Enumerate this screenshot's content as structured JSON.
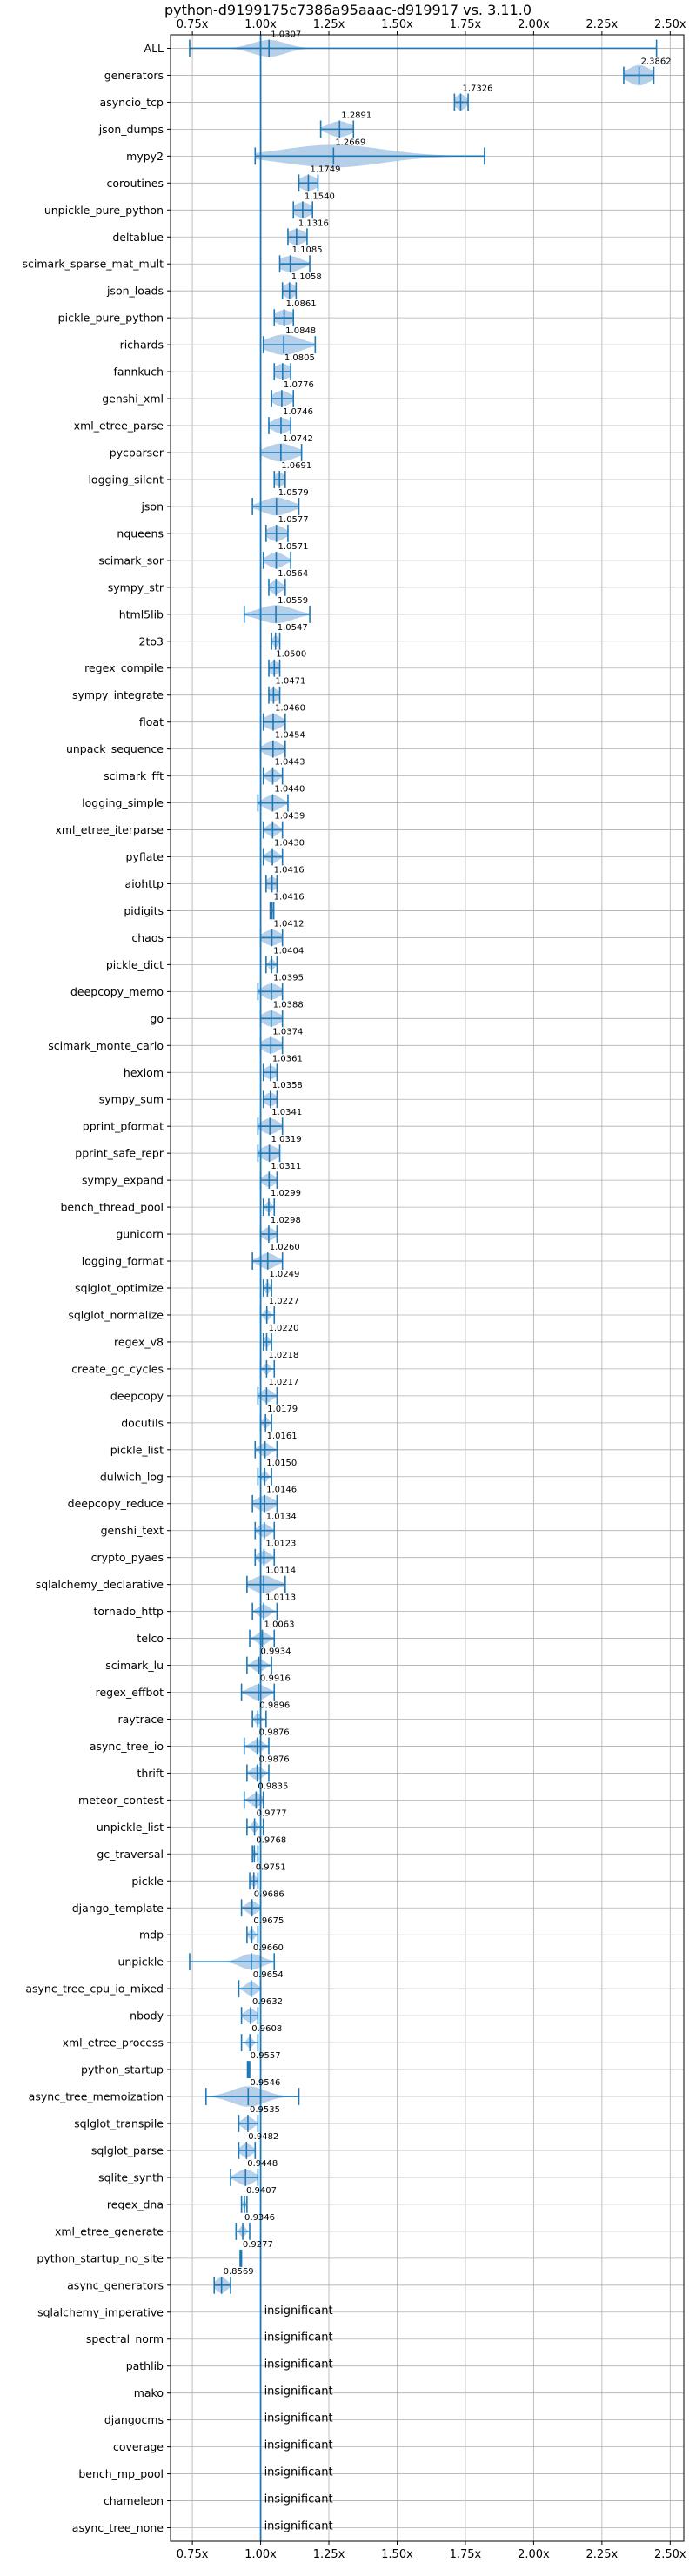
{
  "chart_data": {
    "type": "violin",
    "title": "python-d9199175c7386a95aaac-d919917 vs. 3.11.0",
    "x_ticks": [
      "0.75x",
      "1.00x",
      "1.25x",
      "1.50x",
      "1.75x",
      "2.00x",
      "2.25x",
      "2.50x"
    ],
    "x_tick_values": [
      0.75,
      1.0,
      1.25,
      1.5,
      1.75,
      2.0,
      2.25,
      2.5
    ],
    "xlim": [
      0.67,
      2.55
    ],
    "reference_line": 1.0,
    "grid": true,
    "accent_color": "#1f77b4",
    "fill_color": "#a9c8e6",
    "insignificant_label": "insignificant",
    "benchmarks": [
      {
        "name": "ALL",
        "value": 1.0307,
        "label": "1.0307",
        "min": 0.74,
        "max": 2.45,
        "spread": 0.06,
        "width": 0.75
      },
      {
        "name": "generators",
        "value": 2.3862,
        "label": "2.3862",
        "min": 2.33,
        "max": 2.44,
        "spread": 0.04,
        "width": 0.9
      },
      {
        "name": "asyncio_tcp",
        "value": 1.7326,
        "label": "1.7326",
        "min": 1.71,
        "max": 1.76,
        "spread": 0.02,
        "width": 0.7
      },
      {
        "name": "json_dumps",
        "value": 1.2891,
        "label": "1.2891",
        "min": 1.22,
        "max": 1.34,
        "spread": 0.04,
        "width": 0.7
      },
      {
        "name": "mypy2",
        "value": 1.2669,
        "label": "1.2669",
        "min": 0.98,
        "max": 1.82,
        "spread": 0.18,
        "width": 1.0
      },
      {
        "name": "coroutines",
        "value": 1.1749,
        "label": "1.1749",
        "min": 1.14,
        "max": 1.21,
        "spread": 0.03,
        "width": 0.7
      },
      {
        "name": "unpickle_pure_python",
        "value": 1.154,
        "label": "1.1540",
        "min": 1.12,
        "max": 1.19,
        "spread": 0.03,
        "width": 0.7
      },
      {
        "name": "deltablue",
        "value": 1.1316,
        "label": "1.1316",
        "min": 1.1,
        "max": 1.17,
        "spread": 0.03,
        "width": 0.7
      },
      {
        "name": "scimark_sparse_mat_mult",
        "value": 1.1085,
        "label": "1.1085",
        "min": 1.07,
        "max": 1.18,
        "spread": 0.04,
        "width": 0.7
      },
      {
        "name": "json_loads",
        "value": 1.1058,
        "label": "1.1058",
        "min": 1.08,
        "max": 1.13,
        "spread": 0.02,
        "width": 0.7
      },
      {
        "name": "pickle_pure_python",
        "value": 1.0861,
        "label": "1.0861",
        "min": 1.05,
        "max": 1.12,
        "spread": 0.03,
        "width": 0.7
      },
      {
        "name": "richards",
        "value": 1.0848,
        "label": "1.0848",
        "min": 1.01,
        "max": 1.2,
        "spread": 0.06,
        "width": 0.9
      },
      {
        "name": "fannkuch",
        "value": 1.0805,
        "label": "1.0805",
        "min": 1.05,
        "max": 1.11,
        "spread": 0.03,
        "width": 0.7
      },
      {
        "name": "genshi_xml",
        "value": 1.0776,
        "label": "1.0776",
        "min": 1.04,
        "max": 1.12,
        "spread": 0.03,
        "width": 0.7
      },
      {
        "name": "xml_etree_parse",
        "value": 1.0746,
        "label": "1.0746",
        "min": 1.03,
        "max": 1.11,
        "spread": 0.03,
        "width": 0.7
      },
      {
        "name": "pycparser",
        "value": 1.0742,
        "label": "1.0742",
        "min": 1.0,
        "max": 1.15,
        "spread": 0.05,
        "width": 0.8
      },
      {
        "name": "logging_silent",
        "value": 1.0691,
        "label": "1.0691",
        "min": 1.05,
        "max": 1.09,
        "spread": 0.02,
        "width": 0.6
      },
      {
        "name": "json",
        "value": 1.0579,
        "label": "1.0579",
        "min": 0.97,
        "max": 1.14,
        "spread": 0.05,
        "width": 0.8
      },
      {
        "name": "nqueens",
        "value": 1.0577,
        "label": "1.0577",
        "min": 1.02,
        "max": 1.1,
        "spread": 0.03,
        "width": 0.7
      },
      {
        "name": "scimark_sor",
        "value": 1.0571,
        "label": "1.0571",
        "min": 1.01,
        "max": 1.11,
        "spread": 0.03,
        "width": 0.7
      },
      {
        "name": "sympy_str",
        "value": 1.0564,
        "label": "1.0564",
        "min": 1.03,
        "max": 1.09,
        "spread": 0.02,
        "width": 0.6
      },
      {
        "name": "html5lib",
        "value": 1.0559,
        "label": "1.0559",
        "min": 0.94,
        "max": 1.18,
        "spread": 0.06,
        "width": 0.8
      },
      {
        "name": "2to3",
        "value": 1.0547,
        "label": "1.0547",
        "min": 1.04,
        "max": 1.07,
        "spread": 0.01,
        "width": 0.5
      },
      {
        "name": "regex_compile",
        "value": 1.05,
        "label": "1.0500",
        "min": 1.03,
        "max": 1.07,
        "spread": 0.02,
        "width": 0.6
      },
      {
        "name": "sympy_integrate",
        "value": 1.0471,
        "label": "1.0471",
        "min": 1.03,
        "max": 1.07,
        "spread": 0.02,
        "width": 0.6
      },
      {
        "name": "float",
        "value": 1.046,
        "label": "1.0460",
        "min": 1.01,
        "max": 1.09,
        "spread": 0.03,
        "width": 0.7
      },
      {
        "name": "unpack_sequence",
        "value": 1.0454,
        "label": "1.0454",
        "min": 1.0,
        "max": 1.09,
        "spread": 0.03,
        "width": 0.7
      },
      {
        "name": "scimark_fft",
        "value": 1.0443,
        "label": "1.0443",
        "min": 1.01,
        "max": 1.08,
        "spread": 0.02,
        "width": 0.6
      },
      {
        "name": "logging_simple",
        "value": 1.044,
        "label": "1.0440",
        "min": 0.99,
        "max": 1.1,
        "spread": 0.03,
        "width": 0.7
      },
      {
        "name": "xml_etree_iterparse",
        "value": 1.0439,
        "label": "1.0439",
        "min": 1.01,
        "max": 1.08,
        "spread": 0.02,
        "width": 0.6
      },
      {
        "name": "pyflate",
        "value": 1.043,
        "label": "1.0430",
        "min": 1.01,
        "max": 1.08,
        "spread": 0.02,
        "width": 0.6
      },
      {
        "name": "aiohttp",
        "value": 1.0416,
        "label": "1.0416",
        "min": 1.02,
        "max": 1.06,
        "spread": 0.02,
        "width": 0.6
      },
      {
        "name": "pidigits",
        "value": 1.0416,
        "label": "1.0416",
        "min": 1.035,
        "max": 1.048,
        "spread": 0.004,
        "width": 0.3
      },
      {
        "name": "chaos",
        "value": 1.0412,
        "label": "1.0412",
        "min": 1.0,
        "max": 1.08,
        "spread": 0.03,
        "width": 0.7
      },
      {
        "name": "pickle_dict",
        "value": 1.0404,
        "label": "1.0404",
        "min": 1.02,
        "max": 1.06,
        "spread": 0.01,
        "width": 0.5
      },
      {
        "name": "deepcopy_memo",
        "value": 1.0395,
        "label": "1.0395",
        "min": 0.99,
        "max": 1.08,
        "spread": 0.03,
        "width": 0.7
      },
      {
        "name": "go",
        "value": 1.0388,
        "label": "1.0388",
        "min": 1.0,
        "max": 1.08,
        "spread": 0.03,
        "width": 0.7
      },
      {
        "name": "scimark_monte_carlo",
        "value": 1.0374,
        "label": "1.0374",
        "min": 1.0,
        "max": 1.08,
        "spread": 0.03,
        "width": 0.7
      },
      {
        "name": "hexiom",
        "value": 1.0361,
        "label": "1.0361",
        "min": 1.01,
        "max": 1.06,
        "spread": 0.02,
        "width": 0.6
      },
      {
        "name": "sympy_sum",
        "value": 1.0358,
        "label": "1.0358",
        "min": 1.01,
        "max": 1.06,
        "spread": 0.02,
        "width": 0.6
      },
      {
        "name": "pprint_pformat",
        "value": 1.0341,
        "label": "1.0341",
        "min": 0.99,
        "max": 1.08,
        "spread": 0.03,
        "width": 0.7
      },
      {
        "name": "pprint_safe_repr",
        "value": 1.0319,
        "label": "1.0319",
        "min": 0.99,
        "max": 1.07,
        "spread": 0.03,
        "width": 0.7
      },
      {
        "name": "sympy_expand",
        "value": 1.0311,
        "label": "1.0311",
        "min": 1.0,
        "max": 1.06,
        "spread": 0.02,
        "width": 0.6
      },
      {
        "name": "bench_thread_pool",
        "value": 1.0299,
        "label": "1.0299",
        "min": 1.01,
        "max": 1.05,
        "spread": 0.01,
        "width": 0.5
      },
      {
        "name": "gunicorn",
        "value": 1.0298,
        "label": "1.0298",
        "min": 1.0,
        "max": 1.06,
        "spread": 0.02,
        "width": 0.6
      },
      {
        "name": "logging_format",
        "value": 1.026,
        "label": "1.0260",
        "min": 0.97,
        "max": 1.08,
        "spread": 0.03,
        "width": 0.7
      },
      {
        "name": "sqlglot_optimize",
        "value": 1.0249,
        "label": "1.0249",
        "min": 1.01,
        "max": 1.04,
        "spread": 0.01,
        "width": 0.5
      },
      {
        "name": "sqlglot_normalize",
        "value": 1.0227,
        "label": "1.0227",
        "min": 1.0,
        "max": 1.05,
        "spread": 0.01,
        "width": 0.5
      },
      {
        "name": "regex_v8",
        "value": 1.022,
        "label": "1.0220",
        "min": 1.01,
        "max": 1.04,
        "spread": 0.01,
        "width": 0.5
      },
      {
        "name": "create_gc_cycles",
        "value": 1.0218,
        "label": "1.0218",
        "min": 1.0,
        "max": 1.05,
        "spread": 0.01,
        "width": 0.5
      },
      {
        "name": "deepcopy",
        "value": 1.0217,
        "label": "1.0217",
        "min": 0.99,
        "max": 1.06,
        "spread": 0.02,
        "width": 0.6
      },
      {
        "name": "docutils",
        "value": 1.0179,
        "label": "1.0179",
        "min": 1.0,
        "max": 1.04,
        "spread": 0.01,
        "width": 0.5
      },
      {
        "name": "pickle_list",
        "value": 1.0161,
        "label": "1.0161",
        "min": 0.98,
        "max": 1.06,
        "spread": 0.02,
        "width": 0.6
      },
      {
        "name": "dulwich_log",
        "value": 1.015,
        "label": "1.0150",
        "min": 0.99,
        "max": 1.04,
        "spread": 0.01,
        "width": 0.5
      },
      {
        "name": "deepcopy_reduce",
        "value": 1.0146,
        "label": "1.0146",
        "min": 0.97,
        "max": 1.06,
        "spread": 0.03,
        "width": 0.7
      },
      {
        "name": "genshi_text",
        "value": 1.0134,
        "label": "1.0134",
        "min": 0.98,
        "max": 1.05,
        "spread": 0.02,
        "width": 0.6
      },
      {
        "name": "crypto_pyaes",
        "value": 1.0123,
        "label": "1.0123",
        "min": 0.98,
        "max": 1.05,
        "spread": 0.02,
        "width": 0.6
      },
      {
        "name": "sqlalchemy_declarative",
        "value": 1.0114,
        "label": "1.0114",
        "min": 0.95,
        "max": 1.09,
        "spread": 0.04,
        "width": 0.8
      },
      {
        "name": "tornado_http",
        "value": 1.0113,
        "label": "1.0113",
        "min": 0.97,
        "max": 1.06,
        "spread": 0.02,
        "width": 0.6
      },
      {
        "name": "telco",
        "value": 1.0063,
        "label": "1.0063",
        "min": 0.96,
        "max": 1.05,
        "spread": 0.02,
        "width": 0.6
      },
      {
        "name": "scimark_lu",
        "value": 0.9934,
        "label": "0.9934",
        "min": 0.95,
        "max": 1.04,
        "spread": 0.02,
        "width": 0.6
      },
      {
        "name": "regex_effbot",
        "value": 0.9916,
        "label": "0.9916",
        "min": 0.93,
        "max": 1.05,
        "spread": 0.03,
        "width": 0.7
      },
      {
        "name": "raytrace",
        "value": 0.9896,
        "label": "0.9896",
        "min": 0.97,
        "max": 1.02,
        "spread": 0.01,
        "width": 0.5
      },
      {
        "name": "async_tree_io",
        "value": 0.9876,
        "label": "0.9876",
        "min": 0.94,
        "max": 1.03,
        "spread": 0.02,
        "width": 0.6
      },
      {
        "name": "thrift",
        "value": 0.9876,
        "label": "0.9876",
        "min": 0.95,
        "max": 1.03,
        "spread": 0.02,
        "width": 0.6
      },
      {
        "name": "meteor_contest",
        "value": 0.9835,
        "label": "0.9835",
        "min": 0.94,
        "max": 1.01,
        "spread": 0.02,
        "width": 0.6
      },
      {
        "name": "unpickle_list",
        "value": 0.9777,
        "label": "0.9777",
        "min": 0.95,
        "max": 1.01,
        "spread": 0.01,
        "width": 0.5
      },
      {
        "name": "gc_traversal",
        "value": 0.9768,
        "label": "0.9768",
        "min": 0.97,
        "max": 0.99,
        "spread": 0.005,
        "width": 0.4
      },
      {
        "name": "pickle",
        "value": 0.9751,
        "label": "0.9751",
        "min": 0.96,
        "max": 0.99,
        "spread": 0.01,
        "width": 0.5
      },
      {
        "name": "django_template",
        "value": 0.9686,
        "label": "0.9686",
        "min": 0.93,
        "max": 1.0,
        "spread": 0.02,
        "width": 0.6
      },
      {
        "name": "mdp",
        "value": 0.9675,
        "label": "0.9675",
        "min": 0.95,
        "max": 0.99,
        "spread": 0.01,
        "width": 0.5
      },
      {
        "name": "unpickle",
        "value": 0.966,
        "label": "0.9660",
        "min": 0.74,
        "max": 1.05,
        "spread": 0.04,
        "width": 0.7
      },
      {
        "name": "async_tree_cpu_io_mixed",
        "value": 0.9654,
        "label": "0.9654",
        "min": 0.92,
        "max": 1.0,
        "spread": 0.02,
        "width": 0.6
      },
      {
        "name": "nbody",
        "value": 0.9632,
        "label": "0.9632",
        "min": 0.93,
        "max": 0.99,
        "spread": 0.02,
        "width": 0.6
      },
      {
        "name": "xml_etree_process",
        "value": 0.9608,
        "label": "0.9608",
        "min": 0.93,
        "max": 0.99,
        "spread": 0.01,
        "width": 0.5
      },
      {
        "name": "python_startup",
        "value": 0.9557,
        "label": "0.9557",
        "min": 0.952,
        "max": 0.96,
        "spread": 0.003,
        "width": 0.3
      },
      {
        "name": "async_tree_memoization",
        "value": 0.9546,
        "label": "0.9546",
        "min": 0.8,
        "max": 1.14,
        "spread": 0.06,
        "width": 0.9
      },
      {
        "name": "sqlglot_transpile",
        "value": 0.9535,
        "label": "0.9535",
        "min": 0.92,
        "max": 0.99,
        "spread": 0.02,
        "width": 0.6
      },
      {
        "name": "sqlglot_parse",
        "value": 0.9482,
        "label": "0.9482",
        "min": 0.92,
        "max": 0.98,
        "spread": 0.02,
        "width": 0.6
      },
      {
        "name": "sqlite_synth",
        "value": 0.9448,
        "label": "0.9448",
        "min": 0.89,
        "max": 0.99,
        "spread": 0.03,
        "width": 0.7
      },
      {
        "name": "regex_dna",
        "value": 0.9407,
        "label": "0.9407",
        "min": 0.93,
        "max": 0.95,
        "spread": 0.005,
        "width": 0.4
      },
      {
        "name": "xml_etree_generate",
        "value": 0.9346,
        "label": "0.9346",
        "min": 0.91,
        "max": 0.96,
        "spread": 0.01,
        "width": 0.5
      },
      {
        "name": "python_startup_no_site",
        "value": 0.9277,
        "label": "0.9277",
        "min": 0.925,
        "max": 0.93,
        "spread": 0.002,
        "width": 0.3
      },
      {
        "name": "async_generators",
        "value": 0.8569,
        "label": "0.8569",
        "min": 0.83,
        "max": 0.89,
        "spread": 0.02,
        "width": 0.7
      },
      {
        "name": "sqlalchemy_imperative",
        "insignificant": true
      },
      {
        "name": "spectral_norm",
        "insignificant": true
      },
      {
        "name": "pathlib",
        "insignificant": true
      },
      {
        "name": "mako",
        "insignificant": true
      },
      {
        "name": "djangocms",
        "insignificant": true
      },
      {
        "name": "coverage",
        "insignificant": true
      },
      {
        "name": "bench_mp_pool",
        "insignificant": true
      },
      {
        "name": "chameleon",
        "insignificant": true
      },
      {
        "name": "async_tree_none",
        "insignificant": true
      }
    ]
  }
}
